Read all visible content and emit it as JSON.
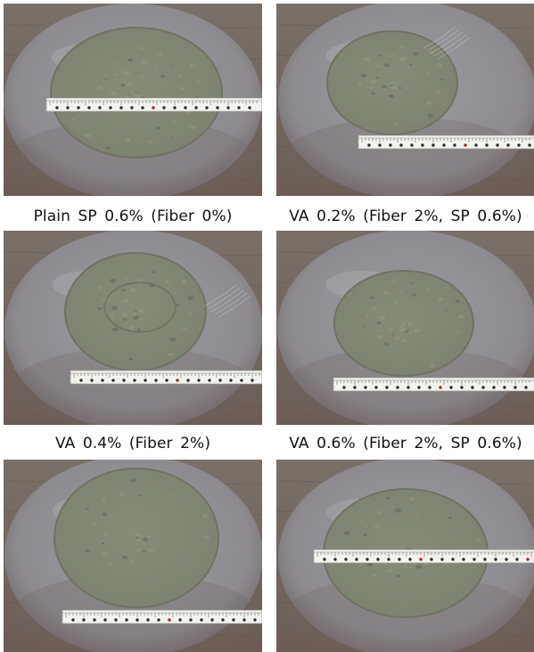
{
  "figure": {
    "captions": [
      "Plain SP 0.6% (Fiber 0%)",
      "VA 0.2% (Fiber 2%, SP 0.6%)",
      "VA 0.4% (Fiber 2%)",
      "VA 0.6% (Fiber 2%, SP 0.6%)"
    ],
    "colors": {
      "plate_rim": "#8d8b8f",
      "plate_inner": "#6b6a6f",
      "concrete": "#7d8172",
      "tape": "#f2f2ee",
      "floor": "#6b5d56"
    }
  }
}
